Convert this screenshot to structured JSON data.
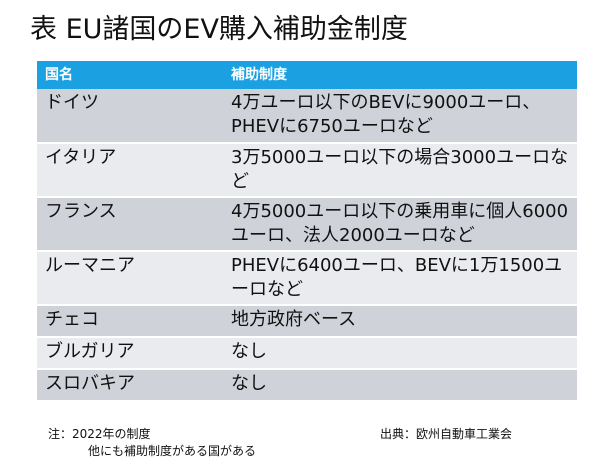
{
  "title": "表 EU諸国のEV購入補助金制度",
  "table": {
    "headers": [
      "国名",
      "補助制度"
    ],
    "rows": [
      {
        "country": "ドイツ",
        "subsidy": "4万ユーロ以下のBEVに9000ユーロ、PHEVに6750ユーロなど"
      },
      {
        "country": "イタリア",
        "subsidy": "3万5000ユーロ以下の場合3000ユーロなど"
      },
      {
        "country": "フランス",
        "subsidy": "4万5000ユーロ以下の乗用車に個人6000ユーロ、法人2000ユーロなど"
      },
      {
        "country": "ルーマニア",
        "subsidy": "PHEVに6400ユーロ、BEVに1万1500ユーロなど"
      },
      {
        "country": "チェコ",
        "subsidy": "地方政府ベース"
      },
      {
        "country": "ブルガリア",
        "subsidy": "なし"
      },
      {
        "country": "スロバキア",
        "subsidy": "なし"
      }
    ]
  },
  "notes": {
    "line1": "注：2022年の制度",
    "line2": "他にも補助制度がある国がある"
  },
  "source": "出典：欧州自動車工業会"
}
